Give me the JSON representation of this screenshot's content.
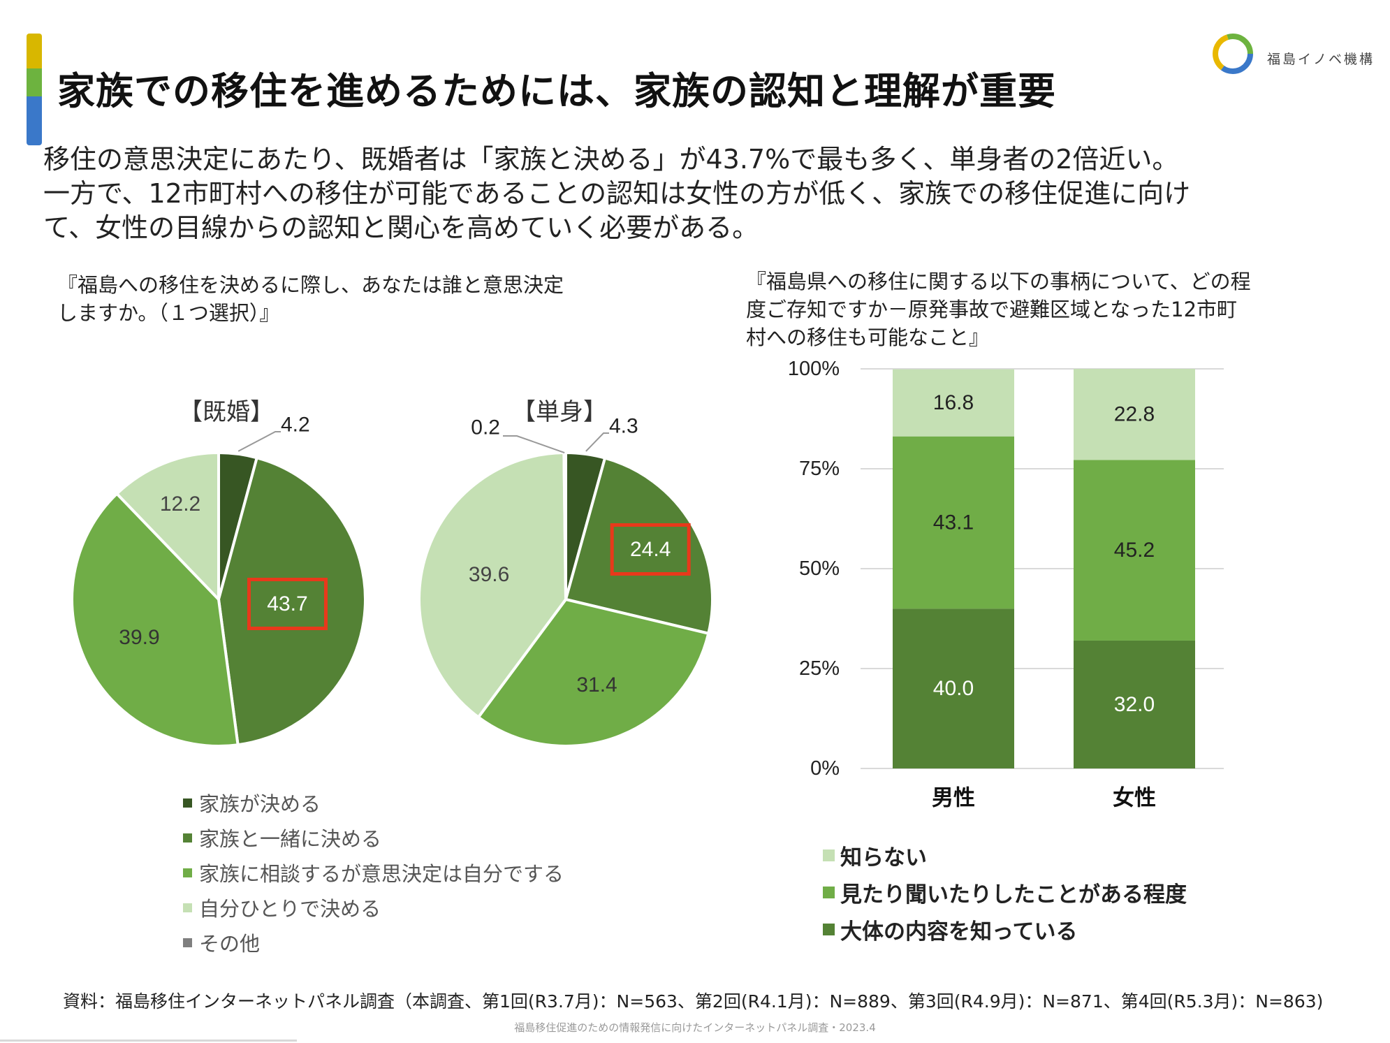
{
  "header": {
    "title": "家族での移住を進めるためには、家族の認知と理解が重要",
    "logo_text": "福島イノベ機構"
  },
  "colors": {
    "darkest": "#375623",
    "dark": "#548235",
    "medium": "#70AD47",
    "light": "#C5E0B4",
    "other": "#7F7F7F",
    "highlight": "#E8391B"
  },
  "lead": [
    "移住の意思決定にあたり、既婚者は「家族と決める」が43.7%で最も多く、単身者の2倍近い。",
    "一方で、12市町村への移住が可能であることの認知は女性の方が低く、家族での移住促進に向け",
    "て、女性の目線からの認知と関心を高めていく必要がある。"
  ],
  "left_question": [
    "『福島への移住を決めるに際し、あなたは誰と意思決定",
    "しますか。（１つ選択）』"
  ],
  "right_question": [
    "『福島県への移住に関する以下の事柄について、どの程",
    "度ご存知ですか－原発事故で避難区域となった12市町",
    "村への移住も可能なこと』"
  ],
  "chart_data": [
    {
      "type": "pie",
      "title": "【既婚】",
      "categories": [
        "家族が決める",
        "家族と一緒に決める",
        "家族に相談するが意思決定は自分でする",
        "自分ひとりで決める",
        "その他"
      ],
      "values": [
        4.2,
        43.7,
        39.9,
        12.2,
        0.0
      ],
      "labels": [
        "4.2",
        "43.7",
        "39.9",
        "12.2",
        ""
      ],
      "highlight": "43.7"
    },
    {
      "type": "pie",
      "title": "【単身】",
      "categories": [
        "家族が決める",
        "家族と一緒に決める",
        "家族に相談するが意思決定は自分でする",
        "自分ひとりで決める",
        "その他"
      ],
      "values": [
        4.3,
        24.4,
        31.4,
        39.6,
        0.2
      ],
      "labels": [
        "4.3",
        "24.4",
        "31.4",
        "39.6",
        "0.2"
      ],
      "highlight": "24.4"
    },
    {
      "type": "bar",
      "stacked": true,
      "categories": [
        "男性",
        "女性"
      ],
      "series": [
        {
          "name": "大体の内容を知っている",
          "values": [
            40.0,
            32.0
          ],
          "labels": [
            "40.0",
            "32.0"
          ]
        },
        {
          "name": "見たり聞いたりしたことがある程度",
          "values": [
            43.1,
            45.2
          ],
          "labels": [
            "43.1",
            "45.2"
          ]
        },
        {
          "name": "知らない",
          "values": [
            16.8,
            22.8
          ],
          "labels": [
            "16.8",
            "22.8"
          ]
        }
      ],
      "ylim": [
        0,
        100
      ],
      "yticks": [
        "0%",
        "25%",
        "50%",
        "75%",
        "100%"
      ],
      "grid": true
    }
  ],
  "pie_legend": [
    "家族が決める",
    "家族と一緒に決める",
    "家族に相談するが意思決定は自分でする",
    "自分ひとりで決める",
    "その他"
  ],
  "bar_legend": [
    "知らない",
    "見たり聞いたりしたことがある程度",
    "大体の内容を知っている"
  ],
  "source": "資料：福島移住インターネットパネル調査（本調査、第1回(R3.7月)：N=563、第2回(R4.1月)：N=889、第3回(R4.9月)：N=871、第4回(R5.3月)：N=863)",
  "footer": "福島移住促進のための情報発信に向けたインターネットパネル調査・2023.4"
}
